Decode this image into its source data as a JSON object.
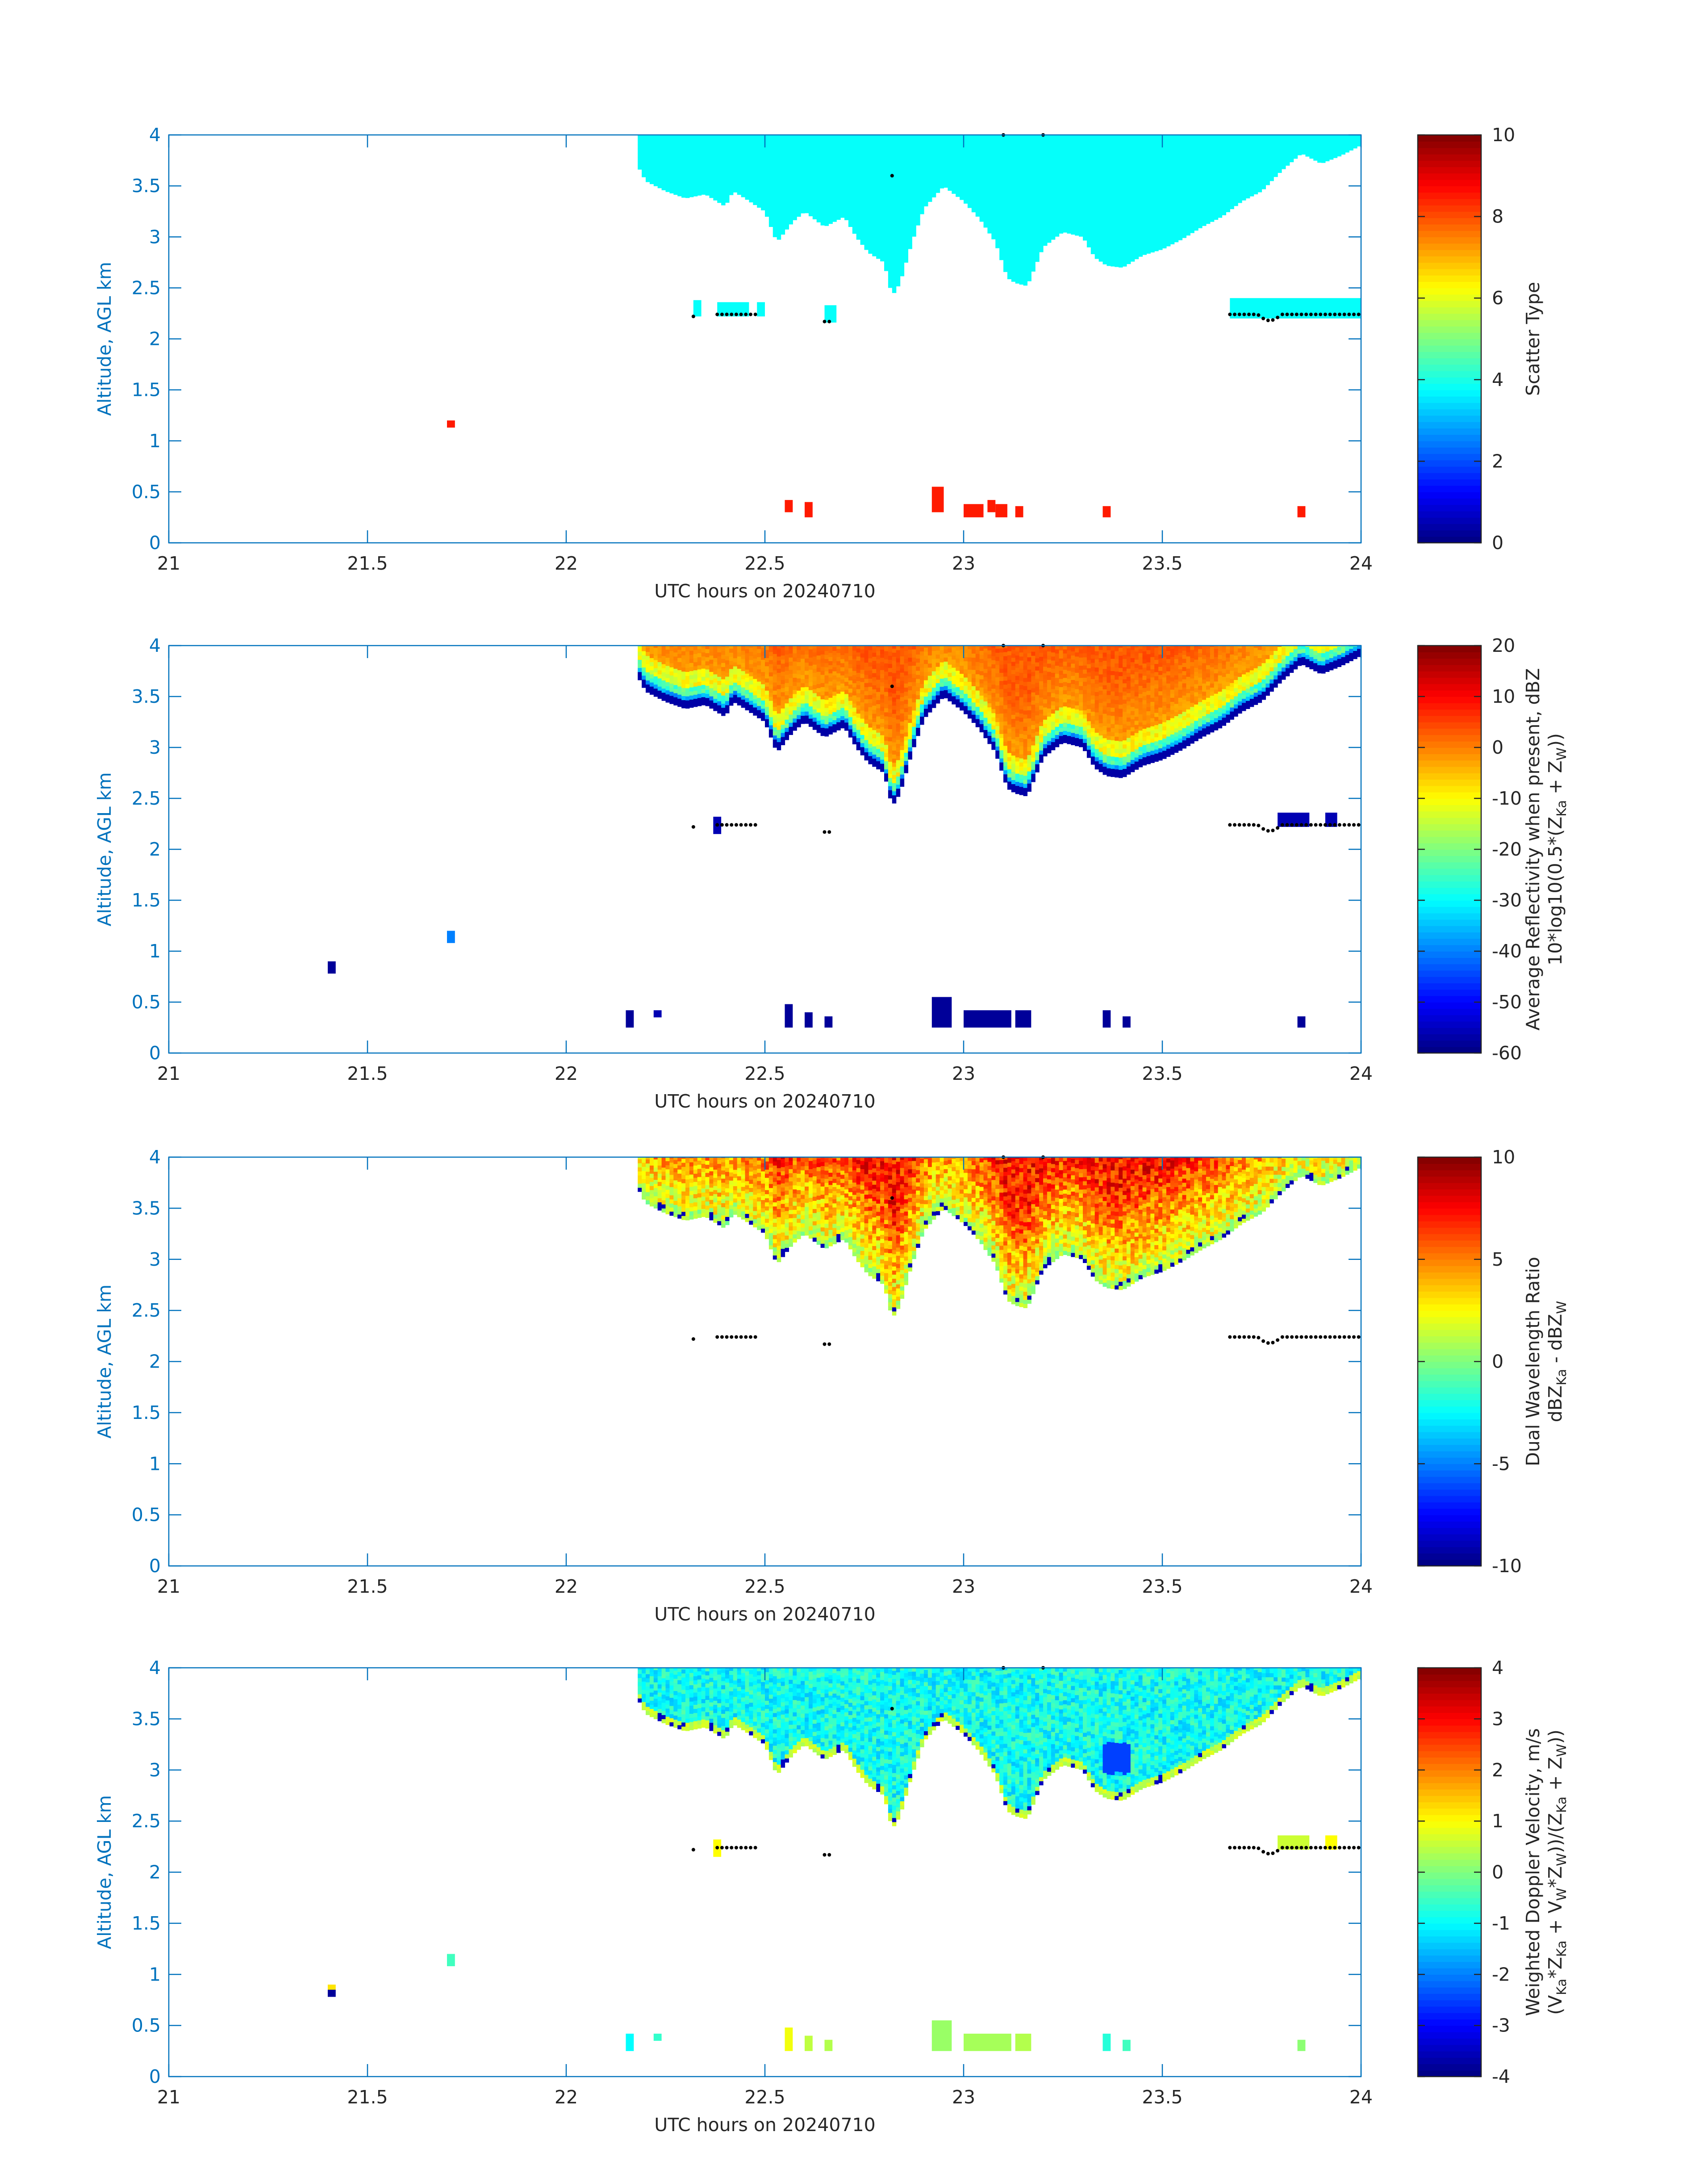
{
  "figure": {
    "background": "#ffffff",
    "axis_color": "#0072bd",
    "text_color": "#262626"
  },
  "chart_data": [
    {
      "type": "heatmap",
      "title": "",
      "xlabel": "UTC hours on 20240710",
      "ylabel": "Altitude, AGL km",
      "xlim": [
        21,
        24
      ],
      "ylim": [
        0,
        4
      ],
      "xticks": [
        "21",
        "21.5",
        "22",
        "22.5",
        "23",
        "23.5",
        "24"
      ],
      "yticks": [
        "0",
        "0.5",
        "1",
        "1.5",
        "2",
        "2.5",
        "3",
        "3.5",
        "4"
      ],
      "colorbar": {
        "label_lines": [
          "Scatter Type"
        ],
        "range": [
          0,
          10
        ],
        "ticks": [
          "0",
          "2",
          "4",
          "6",
          "8",
          "10"
        ],
        "colormap": "jet"
      },
      "field": "scatter",
      "cloud_value": 3.8,
      "low_clutter": [
        {
          "t0": 22.55,
          "t1": 22.57,
          "z0": 0.3,
          "z1": 0.42,
          "v": 8.5
        },
        {
          "t0": 22.6,
          "t1": 22.62,
          "z0": 0.25,
          "z1": 0.4,
          "v": 8.5
        },
        {
          "t0": 22.92,
          "t1": 22.95,
          "z0": 0.3,
          "z1": 0.55,
          "v": 8.5
        },
        {
          "t0": 23.0,
          "t1": 23.05,
          "z0": 0.25,
          "z1": 0.38,
          "v": 8.5
        },
        {
          "t0": 23.06,
          "t1": 23.08,
          "z0": 0.3,
          "z1": 0.42,
          "v": 8.5
        },
        {
          "t0": 23.08,
          "t1": 23.11,
          "z0": 0.25,
          "z1": 0.38,
          "v": 8.5
        },
        {
          "t0": 23.13,
          "t1": 23.15,
          "z0": 0.25,
          "z1": 0.36,
          "v": 8.5
        },
        {
          "t0": 23.35,
          "t1": 23.37,
          "z0": 0.25,
          "z1": 0.36,
          "v": 8.5
        },
        {
          "t0": 23.84,
          "t1": 23.86,
          "z0": 0.25,
          "z1": 0.36,
          "v": 8.5
        },
        {
          "t0": 21.7,
          "t1": 21.72,
          "z0": 1.13,
          "z1": 1.2,
          "v": 8.5
        }
      ],
      "mid_layer": [
        {
          "t0": 22.32,
          "t1": 22.34,
          "z0": 2.22,
          "z1": 2.38,
          "v": 3.8
        },
        {
          "t0": 22.38,
          "t1": 22.46,
          "z0": 2.22,
          "z1": 2.36,
          "v": 3.8
        },
        {
          "t0": 22.48,
          "t1": 22.5,
          "z0": 2.22,
          "z1": 2.36,
          "v": 3.8
        },
        {
          "t0": 22.65,
          "t1": 22.68,
          "z0": 2.16,
          "z1": 2.33,
          "v": 3.8
        },
        {
          "t0": 23.67,
          "t1": 24.0,
          "z0": 2.2,
          "z1": 2.4,
          "v": 3.8
        }
      ]
    },
    {
      "type": "heatmap",
      "title": "",
      "xlabel": "UTC hours on 20240710",
      "ylabel": "Altitude, AGL km",
      "xlim": [
        21,
        24
      ],
      "ylim": [
        0,
        4
      ],
      "xticks": [
        "21",
        "21.5",
        "22",
        "22.5",
        "23",
        "23.5",
        "24"
      ],
      "yticks": [
        "0",
        "0.5",
        "1",
        "1.5",
        "2",
        "2.5",
        "3",
        "3.5",
        "4"
      ],
      "colorbar": {
        "label_lines": [
          "Average Reflectivity when present, dBZ",
          "10*log10(0.5*(Z",
          "Ka",
          " + Z",
          "W",
          "))"
        ],
        "range": [
          -60,
          20
        ],
        "ticks": [
          "-60",
          "-50",
          "-40",
          "-30",
          "-20",
          "-10",
          "0",
          "10",
          "20"
        ],
        "colormap": "jet"
      },
      "field": "reflectivity",
      "low_clutter": [
        {
          "t0": 21.4,
          "t1": 21.42,
          "z0": 0.78,
          "z1": 0.9,
          "v": -58
        },
        {
          "t0": 21.7,
          "t1": 21.72,
          "z0": 1.08,
          "z1": 1.2,
          "v": -40
        },
        {
          "t0": 22.15,
          "t1": 22.17,
          "z0": 0.25,
          "z1": 0.42,
          "v": -58
        },
        {
          "t0": 22.22,
          "t1": 22.24,
          "z0": 0.35,
          "z1": 0.42,
          "v": -56
        },
        {
          "t0": 22.55,
          "t1": 22.57,
          "z0": 0.25,
          "z1": 0.48,
          "v": -58
        },
        {
          "t0": 22.6,
          "t1": 22.62,
          "z0": 0.25,
          "z1": 0.4,
          "v": -58
        },
        {
          "t0": 22.65,
          "t1": 22.67,
          "z0": 0.25,
          "z1": 0.36,
          "v": -58
        },
        {
          "t0": 22.92,
          "t1": 22.97,
          "z0": 0.25,
          "z1": 0.55,
          "v": -58
        },
        {
          "t0": 23.0,
          "t1": 23.12,
          "z0": 0.25,
          "z1": 0.42,
          "v": -58
        },
        {
          "t0": 23.13,
          "t1": 23.17,
          "z0": 0.25,
          "z1": 0.42,
          "v": -58
        },
        {
          "t0": 23.35,
          "t1": 23.37,
          "z0": 0.25,
          "z1": 0.42,
          "v": -58
        },
        {
          "t0": 23.4,
          "t1": 23.42,
          "z0": 0.25,
          "z1": 0.36,
          "v": -58
        },
        {
          "t0": 23.84,
          "t1": 23.86,
          "z0": 0.25,
          "z1": 0.36,
          "v": -58
        }
      ],
      "mid_layer": [
        {
          "t0": 22.37,
          "t1": 22.39,
          "z0": 2.15,
          "z1": 2.32,
          "v": -56
        },
        {
          "t0": 23.79,
          "t1": 23.87,
          "z0": 2.22,
          "z1": 2.36,
          "v": -56
        },
        {
          "t0": 23.91,
          "t1": 23.94,
          "z0": 2.22,
          "z1": 2.36,
          "v": -56
        }
      ]
    },
    {
      "type": "heatmap",
      "title": "",
      "xlabel": "UTC hours on 20240710",
      "ylabel": "Altitude, AGL km",
      "xlim": [
        21,
        24
      ],
      "ylim": [
        0,
        4
      ],
      "xticks": [
        "21",
        "21.5",
        "22",
        "22.5",
        "23",
        "23.5",
        "24"
      ],
      "yticks": [
        "0",
        "0.5",
        "1",
        "1.5",
        "2",
        "2.5",
        "3",
        "3.5",
        "4"
      ],
      "colorbar": {
        "label_lines": [
          "Dual Wavelength Ratio",
          "dBZ",
          "Ka",
          " - dBZ",
          "W"
        ],
        "range": [
          -10,
          10
        ],
        "ticks": [
          "-10",
          "-5",
          "0",
          "5",
          "10"
        ],
        "colormap": "jet"
      },
      "field": "dwr",
      "low_clutter": [],
      "mid_layer": []
    },
    {
      "type": "heatmap",
      "title": "",
      "xlabel": "UTC hours on 20240710",
      "ylabel": "Altitude, AGL km",
      "xlim": [
        21,
        24
      ],
      "ylim": [
        0,
        4
      ],
      "xticks": [
        "21",
        "21.5",
        "22",
        "22.5",
        "23",
        "23.5",
        "24"
      ],
      "yticks": [
        "0",
        "0.5",
        "1",
        "1.5",
        "2",
        "2.5",
        "3",
        "3.5",
        "4"
      ],
      "colorbar": {
        "label_lines": [
          "Weighted Doppler Velocity, m/s",
          "(V",
          "Ka",
          "*Z",
          "Ka",
          " + V",
          "W",
          "*Z",
          "W",
          "))/(Z",
          "Ka",
          " + Z",
          "W",
          "))"
        ],
        "range": [
          -4,
          4
        ],
        "ticks": [
          "-4",
          "-3",
          "-2",
          "-1",
          "0",
          "1",
          "2",
          "3",
          "4"
        ],
        "colormap": "jet"
      },
      "field": "velocity",
      "low_clutter": [
        {
          "t0": 21.4,
          "t1": 21.42,
          "z0": 0.78,
          "z1": 0.85,
          "v": -3.8
        },
        {
          "t0": 21.4,
          "t1": 21.42,
          "z0": 0.85,
          "z1": 0.9,
          "v": 1.2
        },
        {
          "t0": 21.7,
          "t1": 21.72,
          "z0": 1.08,
          "z1": 1.2,
          "v": -0.5
        },
        {
          "t0": 22.15,
          "t1": 22.17,
          "z0": 0.25,
          "z1": 0.42,
          "v": -1
        },
        {
          "t0": 22.22,
          "t1": 22.24,
          "z0": 0.35,
          "z1": 0.42,
          "v": -0.6
        },
        {
          "t0": 22.55,
          "t1": 22.57,
          "z0": 0.25,
          "z1": 0.48,
          "v": 0.9
        },
        {
          "t0": 22.6,
          "t1": 22.62,
          "z0": 0.25,
          "z1": 0.4,
          "v": 0.5
        },
        {
          "t0": 22.65,
          "t1": 22.67,
          "z0": 0.25,
          "z1": 0.36,
          "v": 0.4
        },
        {
          "t0": 22.92,
          "t1": 22.97,
          "z0": 0.25,
          "z1": 0.55,
          "v": 0.2
        },
        {
          "t0": 23.0,
          "t1": 23.12,
          "z0": 0.25,
          "z1": 0.42,
          "v": 0.3
        },
        {
          "t0": 23.13,
          "t1": 23.17,
          "z0": 0.25,
          "z1": 0.42,
          "v": 0.4
        },
        {
          "t0": 23.35,
          "t1": 23.37,
          "z0": 0.25,
          "z1": 0.42,
          "v": -0.7
        },
        {
          "t0": 23.4,
          "t1": 23.42,
          "z0": 0.25,
          "z1": 0.36,
          "v": -0.5
        },
        {
          "t0": 23.84,
          "t1": 23.86,
          "z0": 0.25,
          "z1": 0.36,
          "v": 0.1
        }
      ],
      "mid_layer": [
        {
          "t0": 22.37,
          "t1": 22.39,
          "z0": 2.15,
          "z1": 2.32,
          "v": 1.0
        },
        {
          "t0": 23.79,
          "t1": 23.87,
          "z0": 2.22,
          "z1": 2.36,
          "v": 0.6
        },
        {
          "t0": 23.91,
          "t1": 23.94,
          "z0": 2.22,
          "z1": 2.36,
          "v": 1.0
        }
      ]
    }
  ],
  "cloud_field": {
    "time_step_hours": 0.01,
    "top_km": 4.0,
    "cloud_start_hour": 22.18,
    "base_km_at_hour": [
      [
        22.18,
        3.7
      ],
      [
        22.2,
        3.55
      ],
      [
        22.25,
        3.45
      ],
      [
        22.3,
        3.38
      ],
      [
        22.35,
        3.42
      ],
      [
        22.4,
        3.3
      ],
      [
        22.42,
        3.45
      ],
      [
        22.45,
        3.38
      ],
      [
        22.5,
        3.25
      ],
      [
        22.53,
        2.95
      ],
      [
        22.57,
        3.15
      ],
      [
        22.6,
        3.25
      ],
      [
        22.65,
        3.1
      ],
      [
        22.7,
        3.2
      ],
      [
        22.73,
        3.0
      ],
      [
        22.76,
        2.85
      ],
      [
        22.8,
        2.75
      ],
      [
        22.82,
        2.42
      ],
      [
        22.84,
        2.55
      ],
      [
        22.87,
        2.95
      ],
      [
        22.9,
        3.28
      ],
      [
        22.95,
        3.5
      ],
      [
        23.0,
        3.35
      ],
      [
        23.04,
        3.18
      ],
      [
        23.08,
        2.95
      ],
      [
        23.11,
        2.6
      ],
      [
        23.13,
        2.55
      ],
      [
        23.16,
        2.52
      ],
      [
        23.2,
        2.9
      ],
      [
        23.25,
        3.05
      ],
      [
        23.3,
        3.0
      ],
      [
        23.33,
        2.8
      ],
      [
        23.36,
        2.72
      ],
      [
        23.4,
        2.7
      ],
      [
        23.45,
        2.82
      ],
      [
        23.5,
        2.88
      ],
      [
        23.55,
        2.98
      ],
      [
        23.6,
        3.1
      ],
      [
        23.65,
        3.2
      ],
      [
        23.7,
        3.35
      ],
      [
        23.75,
        3.45
      ],
      [
        23.8,
        3.65
      ],
      [
        23.85,
        3.82
      ],
      [
        23.9,
        3.72
      ],
      [
        23.95,
        3.8
      ],
      [
        24.0,
        3.9
      ]
    ],
    "melting_layer_dots": {
      "segments": [
        [
          22.32,
          22.32,
          2.22
        ],
        [
          22.38,
          22.48,
          2.24
        ],
        [
          22.65,
          22.67,
          2.17
        ],
        [
          23.67,
          24.0,
          2.24
        ]
      ],
      "extra": [
        [
          22.82,
          3.6
        ],
        [
          23.2,
          4.0
        ],
        [
          23.1,
          4.0
        ]
      ]
    }
  }
}
